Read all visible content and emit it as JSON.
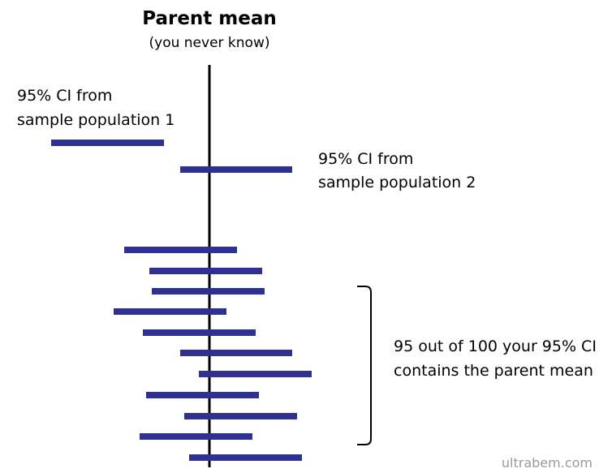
{
  "title": "Parent mean",
  "subtitle": "(you never know)",
  "label_ci1": [
    "95% CI from",
    "sample population 1"
  ],
  "label_ci2": [
    "95% CI from",
    "sample population 2"
  ],
  "label_bracket": [
    "95 out of 100 your 95% CI",
    "contains the parent mean"
  ],
  "watermark": "ultrabem.com",
  "colors": {
    "interval_bar": "#2e3192",
    "mean_line": "#000000",
    "bracket": "#000000",
    "watermark": "#9a9a9a"
  }
}
